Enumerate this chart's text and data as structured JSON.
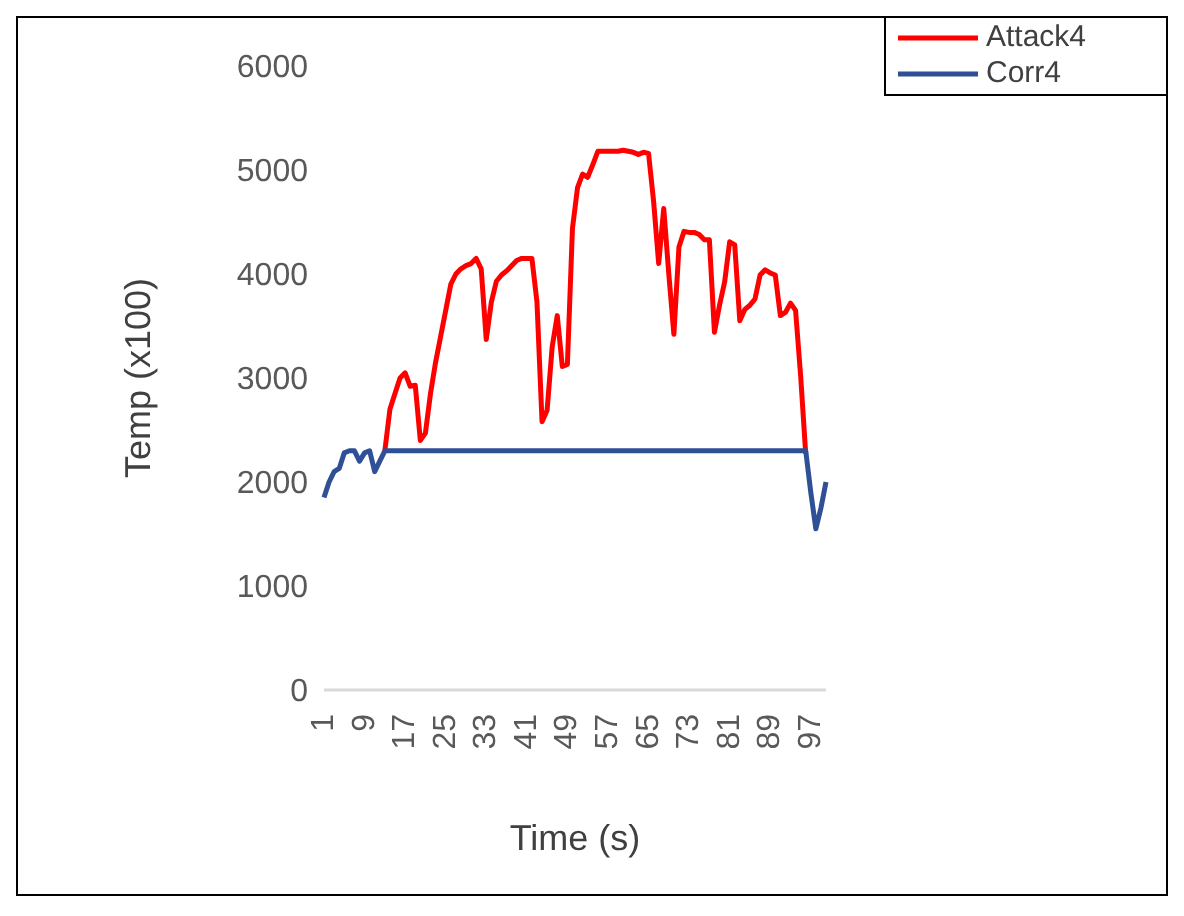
{
  "chart_data": {
    "type": "line",
    "xlabel": "Time (s)",
    "ylabel": "Temp (x100)",
    "categories": [
      "1",
      null,
      null,
      null,
      null,
      null,
      null,
      null,
      "9",
      null,
      null,
      null,
      null,
      null,
      null,
      null,
      "17",
      null,
      null,
      null,
      null,
      null,
      null,
      null,
      "25",
      null,
      null,
      null,
      null,
      null,
      null,
      null,
      "33",
      null,
      null,
      null,
      null,
      null,
      null,
      null,
      "41",
      null,
      null,
      null,
      null,
      null,
      null,
      null,
      "49",
      null,
      null,
      null,
      null,
      null,
      null,
      null,
      "57",
      null,
      null,
      null,
      null,
      null,
      null,
      null,
      "65",
      null,
      null,
      null,
      null,
      null,
      null,
      null,
      "73",
      null,
      null,
      null,
      null,
      null,
      null,
      null,
      "81",
      null,
      null,
      null,
      null,
      null,
      null,
      null,
      "89",
      null,
      null,
      null,
      null,
      null,
      null,
      null,
      "97",
      null,
      null,
      null
    ],
    "series": [
      {
        "name": "Attack4",
        "color": "#ff0000",
        "values": [
          null,
          null,
          null,
          null,
          null,
          null,
          null,
          null,
          null,
          null,
          null,
          null,
          2300,
          2700,
          2850,
          3000,
          3050,
          2920,
          2930,
          2400,
          2470,
          2850,
          3150,
          3400,
          3650,
          3900,
          4000,
          4050,
          4080,
          4100,
          4150,
          4050,
          3370,
          3730,
          3930,
          3990,
          4030,
          4080,
          4130,
          4150,
          4150,
          4150,
          3730,
          2580,
          2690,
          3300,
          3600,
          3110,
          3130,
          4440,
          4830,
          4960,
          4930,
          5050,
          5180,
          5180,
          5180,
          5180,
          5180,
          5190,
          5180,
          5170,
          5150,
          5170,
          5160,
          4700,
          4100,
          4630,
          4000,
          3420,
          4260,
          4410,
          4400,
          4400,
          4380,
          4330,
          4330,
          3440,
          3700,
          3920,
          4310,
          4280,
          3550,
          3660,
          3700,
          3760,
          3990,
          4040,
          4010,
          3990,
          3600,
          3630,
          3720,
          3650,
          3020,
          2270,
          null,
          null,
          null,
          null
        ]
      },
      {
        "name": "Corr4",
        "color": "#2f4f96",
        "values": [
          1850,
          2000,
          2100,
          2130,
          2280,
          2300,
          2300,
          2200,
          2280,
          2300,
          2100,
          2200,
          2300,
          2300,
          2300,
          2300,
          2300,
          2300,
          2300,
          2300,
          2300,
          2300,
          2300,
          2300,
          2300,
          2300,
          2300,
          2300,
          2300,
          2300,
          2300,
          2300,
          2300,
          2300,
          2300,
          2300,
          2300,
          2300,
          2300,
          2300,
          2300,
          2300,
          2300,
          2300,
          2300,
          2300,
          2300,
          2300,
          2300,
          2300,
          2300,
          2300,
          2300,
          2300,
          2300,
          2300,
          2300,
          2300,
          2300,
          2300,
          2300,
          2300,
          2300,
          2300,
          2300,
          2300,
          2300,
          2300,
          2300,
          2300,
          2300,
          2300,
          2300,
          2300,
          2300,
          2300,
          2300,
          2300,
          2300,
          2300,
          2300,
          2300,
          2300,
          2300,
          2300,
          2300,
          2300,
          2300,
          2300,
          2300,
          2300,
          2300,
          2300,
          2300,
          2300,
          2300,
          1900,
          1550,
          1750,
          2000
        ]
      }
    ],
    "ylim": [
      0,
      6000
    ],
    "yticks": [
      0,
      1000,
      2000,
      3000,
      4000,
      5000,
      6000
    ],
    "grid": false,
    "legend": "top right"
  }
}
